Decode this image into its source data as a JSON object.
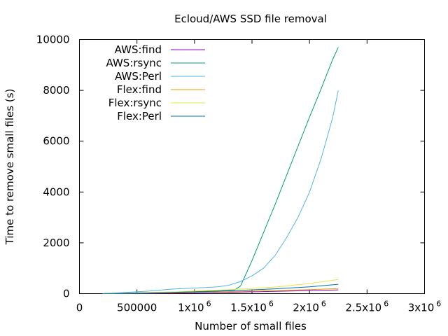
{
  "chart_data": {
    "type": "line",
    "title": "Ecloud/AWS SSD file removal",
    "xlabel": "Number of small files",
    "ylabel": "Time to remove small files (s)",
    "xlim": [
      0,
      3000000
    ],
    "ylim": [
      0,
      10000
    ],
    "x_ticks": [
      {
        "value": 0,
        "label": "0",
        "exp": ""
      },
      {
        "value": 500000,
        "label": "500000",
        "exp": ""
      },
      {
        "value": 1000000,
        "label": "1x10",
        "exp": "6"
      },
      {
        "value": 1500000,
        "label": "1.5x10",
        "exp": "6"
      },
      {
        "value": 2000000,
        "label": "2x10",
        "exp": "6"
      },
      {
        "value": 2500000,
        "label": "2.5x10",
        "exp": "6"
      },
      {
        "value": 3000000,
        "label": "3x10",
        "exp": "6"
      }
    ],
    "y_ticks": [
      {
        "value": 0,
        "label": "0"
      },
      {
        "value": 2000,
        "label": "2000"
      },
      {
        "value": 4000,
        "label": "4000"
      },
      {
        "value": 6000,
        "label": "6000"
      },
      {
        "value": 8000,
        "label": "8000"
      },
      {
        "value": 10000,
        "label": "10000"
      }
    ],
    "grid": false,
    "legend_position": "top-left",
    "series": [
      {
        "name": "AWS:find",
        "color": "#9400d3",
        "x": [
          200000,
          500000,
          800000,
          1100000,
          1400000,
          1700000,
          2000000,
          2250000
        ],
        "y": [
          0,
          10,
          20,
          40,
          60,
          90,
          120,
          150
        ]
      },
      {
        "name": "AWS:rsync",
        "color": "#009e73",
        "x": [
          200000,
          400000,
          600000,
          800000,
          1000000,
          1200000,
          1350000,
          1400000,
          1500000,
          1600000,
          1700000,
          1800000,
          1900000,
          2000000,
          2100000,
          2200000,
          2250000
        ],
        "y": [
          0,
          20,
          40,
          60,
          80,
          110,
          150,
          300,
          1300,
          2400,
          3500,
          4650,
          5800,
          6950,
          8050,
          9200,
          9700
        ]
      },
      {
        "name": "AWS:Perl",
        "color": "#56b4e9",
        "x": [
          200000,
          400000,
          600000,
          800000,
          1000000,
          1100000,
          1200000,
          1300000,
          1400000,
          1500000,
          1600000,
          1700000,
          1800000,
          1900000,
          2000000,
          2100000,
          2200000,
          2250000
        ],
        "y": [
          0,
          50,
          100,
          180,
          220,
          240,
          270,
          330,
          480,
          700,
          1000,
          1500,
          2200,
          3000,
          4000,
          5300,
          6900,
          8000
        ]
      },
      {
        "name": "Flex:find",
        "color": "#e69f00",
        "x": [
          200000,
          500000,
          800000,
          1100000,
          1400000,
          1700000,
          2000000,
          2250000
        ],
        "y": [
          0,
          15,
          35,
          60,
          90,
          120,
          160,
          200
        ]
      },
      {
        "name": "Flex:rsync",
        "color": "#f0e442",
        "x": [
          200000,
          500000,
          800000,
          1100000,
          1400000,
          1700000,
          2000000,
          2250000
        ],
        "y": [
          0,
          30,
          70,
          120,
          180,
          260,
          400,
          560
        ]
      },
      {
        "name": "Flex:Perl",
        "color": "#0072b2",
        "x": [
          200000,
          500000,
          800000,
          1100000,
          1400000,
          1700000,
          2000000,
          2250000
        ],
        "y": [
          0,
          20,
          50,
          80,
          130,
          190,
          270,
          370
        ]
      }
    ]
  }
}
